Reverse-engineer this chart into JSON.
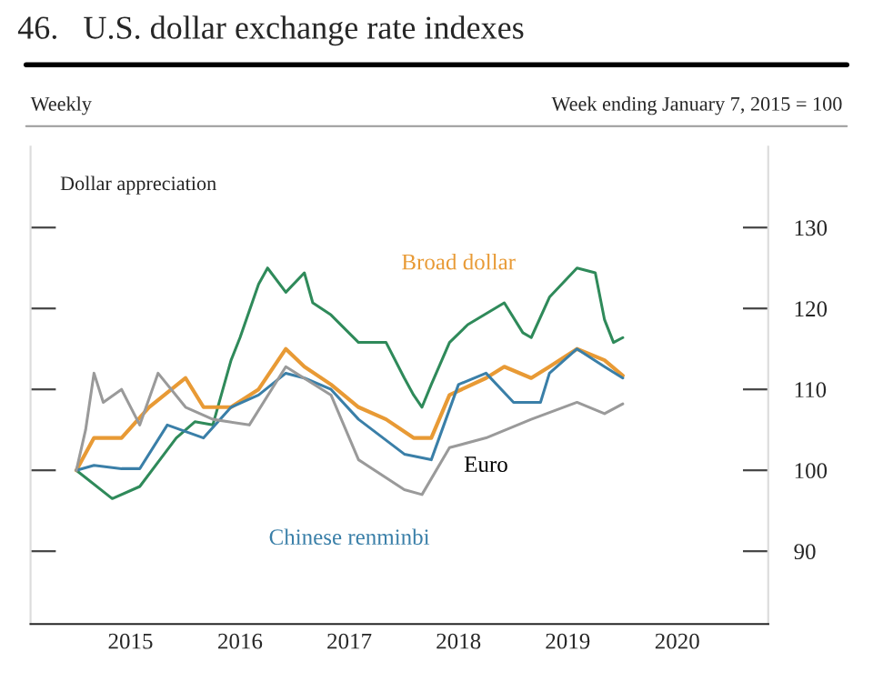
{
  "chart_data": {
    "type": "line",
    "title": "46.   U.S. dollar exchange rate indexes",
    "subtitle": "Weekly",
    "annotations": [
      "Week ending January 7, 2015 = 100",
      "Dollar appreciation"
    ],
    "series": [
      {
        "name": null,
        "color": "#2f8a5a",
        "x": [
          "2015-01",
          "2015-05",
          "2015-08",
          "2015-12",
          "2016-02",
          "2016-04",
          "2016-06",
          "2016-07",
          "2016-09",
          "2016-10",
          "2016-12",
          "2017-02",
          "2017-03",
          "2017-05",
          "2017-08",
          "2017-11",
          "2018-01",
          "2018-02",
          "2018-03",
          "2018-04",
          "2018-06",
          "2018-08",
          "2018-12",
          "2019-02",
          "2019-03",
          "2019-05",
          "2019-08",
          "2019-10",
          "2019-11",
          "2019-12",
          "2020-01"
        ],
        "values": [
          100,
          96.5,
          98,
          104,
          106,
          105.6,
          113.6,
          116.4,
          123,
          125,
          122,
          124.4,
          120.7,
          119.2,
          115.8,
          115.8,
          111.4,
          109.3,
          107.8,
          110.6,
          115.8,
          118,
          120.7,
          117,
          116.4,
          121.4,
          125,
          124.4,
          118.6,
          115.8,
          116.4
        ]
      },
      {
        "name": "Broad dollar",
        "color": "#e89a35",
        "x": [
          "2015-01",
          "2015-03",
          "2015-06",
          "2015-09",
          "2016-01",
          "2016-03",
          "2016-06",
          "2016-09",
          "2016-12",
          "2017-02",
          "2017-05",
          "2017-08",
          "2017-11",
          "2018-02",
          "2018-04",
          "2018-06",
          "2018-10",
          "2018-12",
          "2019-03",
          "2019-05",
          "2019-08",
          "2019-11",
          "2020-01"
        ],
        "values": [
          100,
          104,
          104,
          107.8,
          111.4,
          107.8,
          107.8,
          110,
          115,
          112.8,
          110.6,
          107.8,
          106.3,
          104,
          104,
          109.3,
          111.4,
          112.8,
          111.4,
          112.8,
          115,
          113.6,
          111.7
        ]
      },
      {
        "name": "Chinese renminbi",
        "color": "#3a7fa8",
        "x": [
          "2015-01",
          "2015-03",
          "2015-06",
          "2015-08",
          "2015-11",
          "2016-03",
          "2016-06",
          "2016-09",
          "2016-12",
          "2017-02",
          "2017-05",
          "2017-08",
          "2018-01",
          "2018-04",
          "2018-07",
          "2018-10",
          "2019-01",
          "2019-04",
          "2019-05",
          "2019-08",
          "2019-11",
          "2020-01"
        ],
        "values": [
          100,
          100.6,
          100.2,
          100.2,
          105.6,
          104,
          107.8,
          109.3,
          112,
          111.4,
          110,
          106.3,
          102,
          101.3,
          110.6,
          112,
          108.4,
          108.4,
          112,
          115,
          112.8,
          111.4
        ]
      },
      {
        "name": "Euro",
        "color": "#9a9a9a",
        "x": [
          "2015-01",
          "2015-02",
          "2015-03",
          "2015-04",
          "2015-06",
          "2015-08",
          "2015-10",
          "2016-01",
          "2016-04",
          "2016-08",
          "2016-12",
          "2017-05",
          "2017-07",
          "2017-08",
          "2018-01",
          "2018-03",
          "2018-06",
          "2018-10",
          "2019-03",
          "2019-08",
          "2019-11",
          "2020-01"
        ],
        "values": [
          100,
          105,
          112,
          108.4,
          110,
          105.6,
          112,
          107.8,
          106.3,
          105.6,
          112.8,
          109.3,
          104,
          101.3,
          97.6,
          97,
          102.8,
          104,
          106.3,
          108.4,
          107,
          108.2
        ]
      }
    ],
    "xlim": [
      "2014-08",
      "2021-05"
    ],
    "xticks": [
      {
        "value": "2015-07-01",
        "label": "2015"
      },
      {
        "value": "2016-07-01",
        "label": "2016"
      },
      {
        "value": "2017-07-01",
        "label": "2017"
      },
      {
        "value": "2018-07-01",
        "label": "2018"
      },
      {
        "value": "2019-07-01",
        "label": "2019"
      },
      {
        "value": "2020-07-01",
        "label": "2020"
      }
    ],
    "ylim": [
      81,
      140
    ],
    "yticks": [
      90,
      100,
      110,
      120,
      130
    ],
    "legend": false,
    "grid": false
  }
}
